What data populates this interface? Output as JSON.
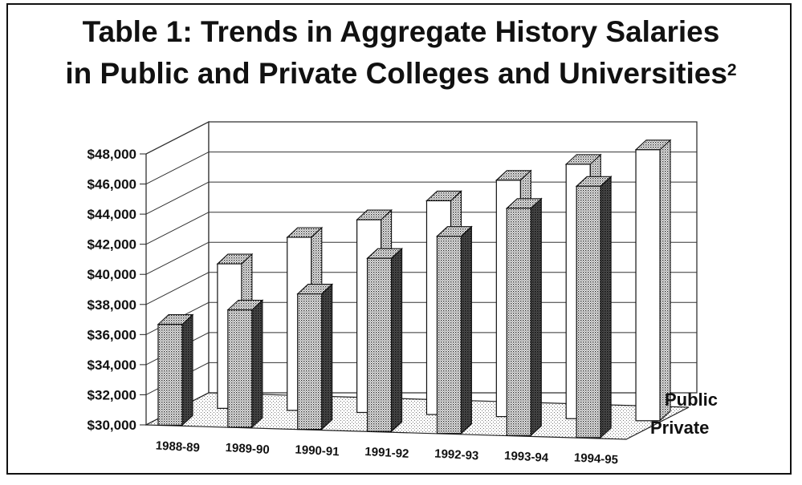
{
  "title_line1": "Table 1: Trends in Aggregate History Salaries",
  "title_line2": "in Public and Private Colleges and Universities",
  "title_superscript": "2",
  "chart_data": {
    "type": "bar",
    "style": "3d-clustered",
    "categories": [
      "1988-89",
      "1989-90",
      "1990-91",
      "1991-92",
      "1992-93",
      "1993-94",
      "1994-95"
    ],
    "series": [
      {
        "name": "Public",
        "values": [
          39600,
          41500,
          42800,
          44200,
          45700,
          46900,
          48000
        ],
        "color": "#ffffff"
      },
      {
        "name": "Private",
        "values": [
          36700,
          37800,
          39000,
          41500,
          43100,
          45100,
          46700
        ],
        "color": "#b8b8b8"
      }
    ],
    "ylim": [
      30000,
      48000
    ],
    "yticks": [
      "$48,000",
      "$46,000",
      "$44,000",
      "$42,000",
      "$40,000",
      "$38,000",
      "$36,000",
      "$34,000",
      "$32,000",
      "$30,000"
    ],
    "ytick_values": [
      48000,
      46000,
      44000,
      42000,
      40000,
      38000,
      36000,
      34000,
      32000,
      30000
    ],
    "grid": true,
    "legend": "series labels on right depth axis"
  }
}
